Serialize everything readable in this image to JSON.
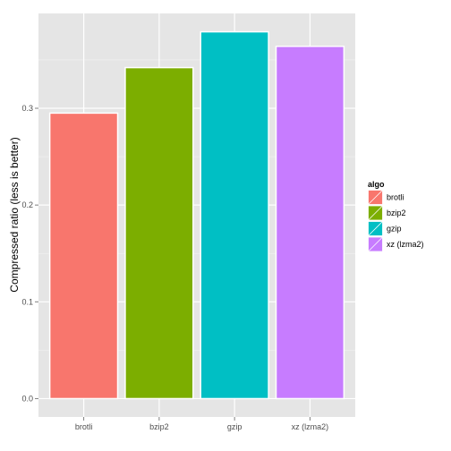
{
  "chart_data": {
    "type": "bar",
    "categories": [
      "brotli",
      "bzip2",
      "gzip",
      "xz (lzma2)"
    ],
    "values": [
      0.295,
      0.342,
      0.379,
      0.364
    ],
    "colors": [
      "#F8766D",
      "#7CAE00",
      "#00BFC4",
      "#C77CFF"
    ],
    "xlabel": "",
    "ylabel": "Compressed ratio (less is better)",
    "ylim": [
      -0.019,
      0.398
    ],
    "yticks": [
      0.0,
      0.1,
      0.2,
      0.3
    ],
    "ytick_labels": [
      "0.0",
      "0.1",
      "0.2",
      "0.3"
    ],
    "grid": true,
    "panel_background": "#E5E5E5",
    "legend": {
      "title": "algo",
      "position": "right",
      "entries": [
        "brotli",
        "bzip2",
        "gzip",
        "xz (lzma2)"
      ]
    }
  }
}
